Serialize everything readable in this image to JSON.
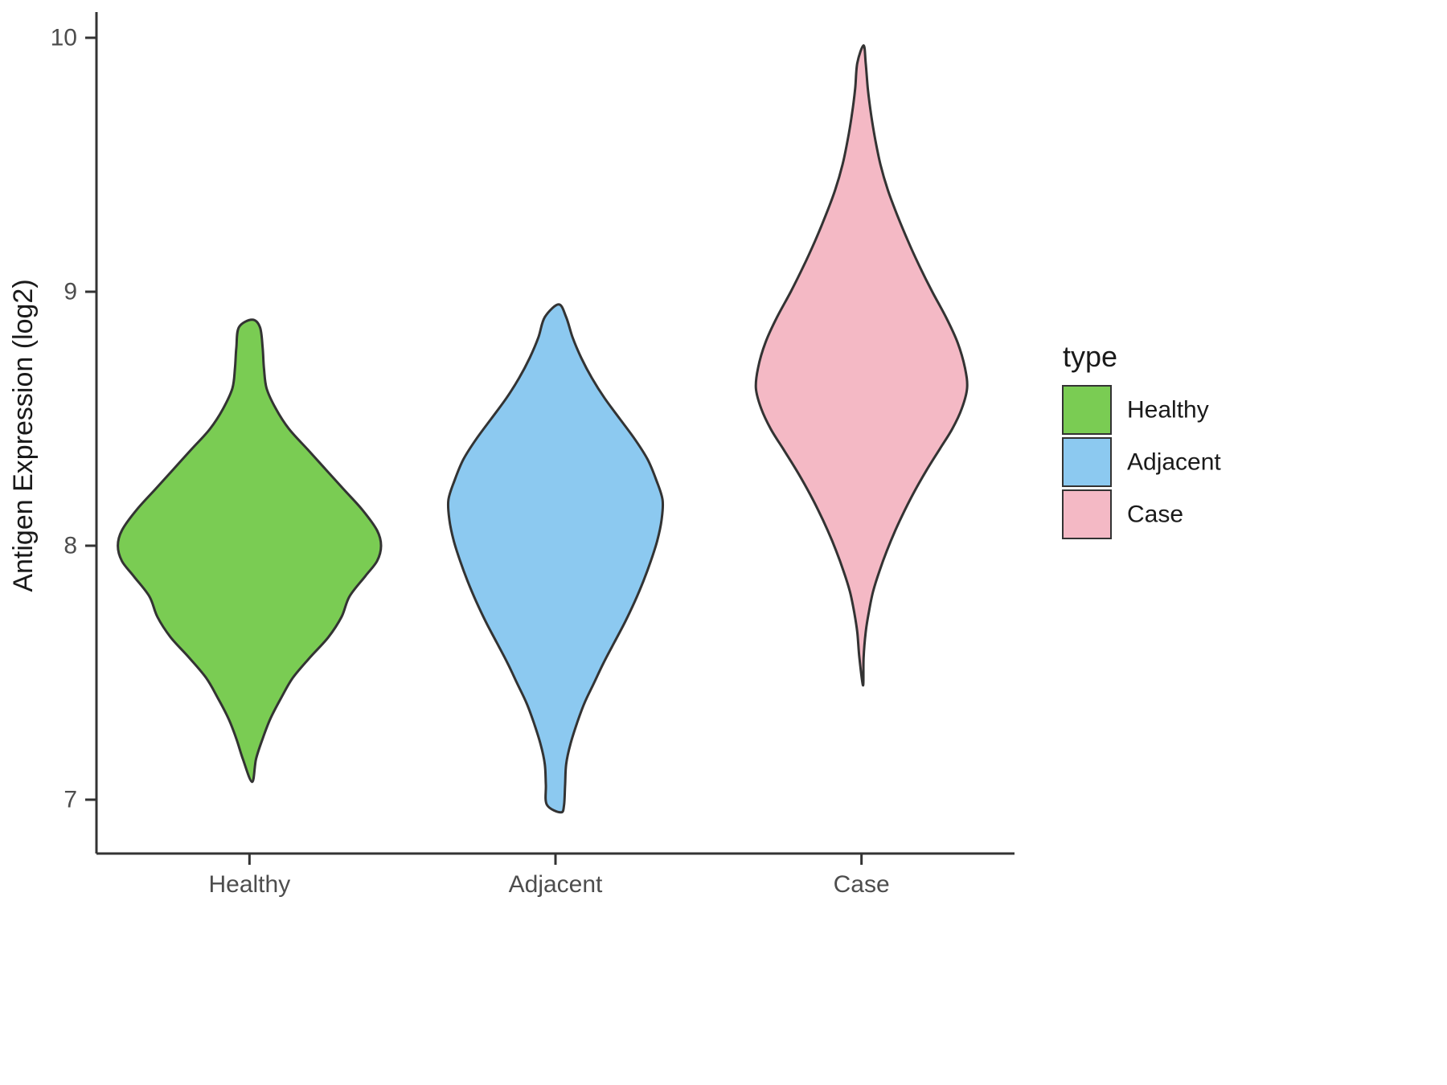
{
  "chart_data": {
    "type": "violin",
    "title": "",
    "xlabel": "",
    "ylabel": "Antigen Expression (log2)",
    "ylim": [
      6.8,
      10.05
    ],
    "yticks": [
      10,
      9,
      8,
      7
    ],
    "grid": false,
    "legend_position": "right",
    "categories": [
      "Healthy",
      "Adjacent",
      "Case"
    ],
    "legend": {
      "title": "type",
      "entries": [
        {
          "label": "Healthy",
          "color": "#7ACC53"
        },
        {
          "label": "Adjacent",
          "color": "#8CC9F0"
        },
        {
          "label": "Case",
          "color": "#F4B9C5"
        }
      ]
    },
    "outline_color": "#333333",
    "series": [
      {
        "name": "Healthy",
        "color": "#7ACC53",
        "min": 7.07,
        "max": 8.89,
        "peak": 8.0,
        "max_halfwidth": 0.43,
        "profile": [
          [
            8.89,
            0.02
          ],
          [
            8.86,
            0.08
          ],
          [
            8.78,
            0.1
          ],
          [
            8.7,
            0.11
          ],
          [
            8.62,
            0.13
          ],
          [
            8.54,
            0.2
          ],
          [
            8.46,
            0.3
          ],
          [
            8.38,
            0.44
          ],
          [
            8.3,
            0.58
          ],
          [
            8.22,
            0.72
          ],
          [
            8.14,
            0.86
          ],
          [
            8.06,
            0.97
          ],
          [
            8.0,
            1.0
          ],
          [
            7.94,
            0.97
          ],
          [
            7.88,
            0.88
          ],
          [
            7.8,
            0.76
          ],
          [
            7.72,
            0.7
          ],
          [
            7.64,
            0.6
          ],
          [
            7.56,
            0.46
          ],
          [
            7.48,
            0.33
          ],
          [
            7.4,
            0.24
          ],
          [
            7.32,
            0.16
          ],
          [
            7.24,
            0.1
          ],
          [
            7.16,
            0.05
          ],
          [
            7.07,
            0.02
          ]
        ]
      },
      {
        "name": "Adjacent",
        "color": "#8CC9F0",
        "min": 6.95,
        "max": 8.95,
        "peak": 8.18,
        "max_halfwidth": 0.35,
        "profile": [
          [
            8.95,
            0.03
          ],
          [
            8.9,
            0.1
          ],
          [
            8.82,
            0.16
          ],
          [
            8.74,
            0.24
          ],
          [
            8.66,
            0.34
          ],
          [
            8.58,
            0.46
          ],
          [
            8.5,
            0.6
          ],
          [
            8.42,
            0.74
          ],
          [
            8.34,
            0.86
          ],
          [
            8.26,
            0.94
          ],
          [
            8.18,
            1.0
          ],
          [
            8.1,
            0.99
          ],
          [
            8.02,
            0.95
          ],
          [
            7.94,
            0.89
          ],
          [
            7.86,
            0.82
          ],
          [
            7.78,
            0.74
          ],
          [
            7.7,
            0.65
          ],
          [
            7.62,
            0.55
          ],
          [
            7.54,
            0.45
          ],
          [
            7.46,
            0.36
          ],
          [
            7.38,
            0.27
          ],
          [
            7.3,
            0.2
          ],
          [
            7.22,
            0.14
          ],
          [
            7.14,
            0.1
          ],
          [
            7.06,
            0.09
          ],
          [
            6.98,
            0.08
          ],
          [
            6.95,
            0.05
          ]
        ]
      },
      {
        "name": "Case",
        "color": "#F4B9C5",
        "min": 7.45,
        "max": 9.97,
        "peak": 8.62,
        "max_halfwidth": 0.345,
        "profile": [
          [
            9.97,
            0.02
          ],
          [
            9.9,
            0.04
          ],
          [
            9.8,
            0.06
          ],
          [
            9.7,
            0.09
          ],
          [
            9.6,
            0.13
          ],
          [
            9.5,
            0.18
          ],
          [
            9.4,
            0.25
          ],
          [
            9.3,
            0.34
          ],
          [
            9.2,
            0.44
          ],
          [
            9.1,
            0.55
          ],
          [
            9.0,
            0.67
          ],
          [
            8.9,
            0.8
          ],
          [
            8.8,
            0.91
          ],
          [
            8.7,
            0.98
          ],
          [
            8.62,
            1.0
          ],
          [
            8.54,
            0.95
          ],
          [
            8.46,
            0.86
          ],
          [
            8.38,
            0.74
          ],
          [
            8.3,
            0.62
          ],
          [
            8.22,
            0.51
          ],
          [
            8.14,
            0.41
          ],
          [
            8.06,
            0.32
          ],
          [
            7.98,
            0.24
          ],
          [
            7.9,
            0.17
          ],
          [
            7.82,
            0.11
          ],
          [
            7.74,
            0.07
          ],
          [
            7.66,
            0.04
          ],
          [
            7.56,
            0.02
          ],
          [
            7.45,
            0.015
          ]
        ]
      }
    ]
  }
}
